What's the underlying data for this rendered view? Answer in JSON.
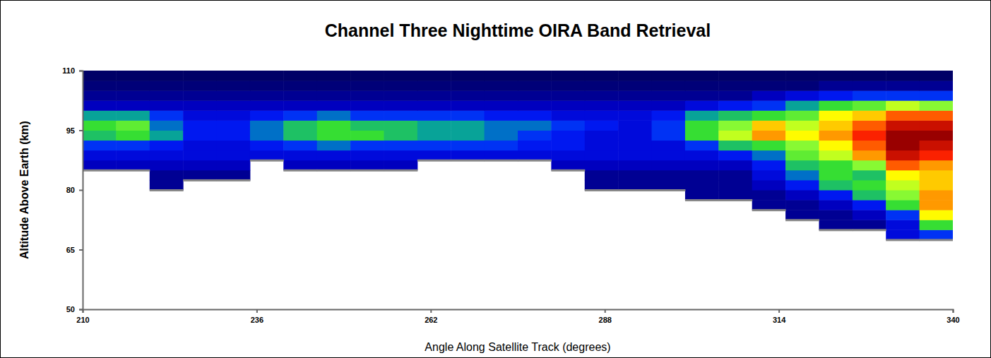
{
  "chart_data": {
    "type": "heatmap",
    "title": "Channel Three Nighttime OIRA Band Retrieval",
    "x_label": "Angle Along Satellite Track (degrees)",
    "y_label": "Altitude Above Earth (km)",
    "xlim": [
      210,
      340
    ],
    "ylim": [
      50,
      110
    ],
    "xticks": [
      210,
      236,
      262,
      288,
      314,
      340
    ],
    "yticks": [
      50,
      65,
      80,
      95,
      110
    ],
    "tick_labels": true,
    "grid": false,
    "x": [
      210,
      215,
      220,
      225,
      230,
      235,
      240,
      245,
      250,
      255,
      260,
      265,
      270,
      275,
      280,
      285,
      290,
      295,
      300,
      305,
      310,
      315,
      320,
      325,
      330,
      335
    ],
    "y": [
      65,
      67.5,
      70,
      72.5,
      75,
      77.5,
      80,
      82.5,
      85,
      87.5,
      90,
      92.5,
      95,
      97.5,
      100,
      102.5,
      105,
      107.5
    ],
    "values": [
      [
        null,
        null,
        null,
        null,
        null,
        null,
        null,
        null,
        null,
        null,
        null,
        null,
        null,
        null,
        null,
        null,
        null,
        null,
        null,
        null,
        null,
        null,
        null,
        null,
        null,
        null
      ],
      [
        null,
        null,
        null,
        null,
        null,
        null,
        null,
        null,
        null,
        null,
        null,
        null,
        null,
        null,
        null,
        null,
        null,
        null,
        null,
        null,
        null,
        null,
        null,
        null,
        2,
        3
      ],
      [
        null,
        null,
        null,
        null,
        null,
        null,
        null,
        null,
        null,
        null,
        null,
        null,
        null,
        null,
        null,
        null,
        null,
        null,
        null,
        null,
        null,
        null,
        1,
        1,
        2,
        5
      ],
      [
        null,
        null,
        null,
        null,
        null,
        null,
        null,
        null,
        null,
        null,
        null,
        null,
        null,
        null,
        null,
        null,
        null,
        null,
        null,
        null,
        null,
        1,
        1,
        1.5,
        3,
        7
      ],
      [
        null,
        null,
        null,
        null,
        null,
        null,
        null,
        null,
        null,
        null,
        null,
        null,
        null,
        null,
        null,
        null,
        null,
        null,
        null,
        null,
        1,
        1,
        1.5,
        2.5,
        5,
        8
      ],
      [
        null,
        null,
        null,
        null,
        null,
        null,
        null,
        null,
        null,
        null,
        null,
        null,
        null,
        null,
        null,
        null,
        null,
        null,
        1,
        1,
        1,
        1.5,
        2.5,
        4.5,
        6,
        8
      ],
      [
        null,
        null,
        1,
        null,
        null,
        null,
        null,
        null,
        null,
        null,
        null,
        null,
        null,
        null,
        null,
        1,
        1,
        1,
        1,
        1,
        1.5,
        2.5,
        4.5,
        5,
        6.5,
        7.5
      ],
      [
        null,
        null,
        1,
        1,
        1,
        null,
        null,
        null,
        null,
        null,
        null,
        null,
        null,
        null,
        null,
        1,
        1,
        1,
        1,
        1,
        2,
        3.5,
        5,
        4.5,
        7,
        7.5
      ],
      [
        1.5,
        1.5,
        1.5,
        1.5,
        1.5,
        null,
        1.5,
        1.5,
        1.5,
        1.5,
        null,
        null,
        null,
        null,
        1.5,
        1.5,
        1.5,
        1.5,
        1.5,
        1.5,
        2.5,
        4.5,
        5,
        6,
        8.5,
        8
      ],
      [
        2,
        2,
        2,
        2,
        2,
        2,
        2,
        2,
        2,
        2,
        2,
        2,
        2,
        2,
        2,
        2,
        2,
        2,
        2,
        2.5,
        3.5,
        5.5,
        6.5,
        8,
        9.5,
        9
      ],
      [
        3,
        3,
        2.5,
        2,
        2,
        2.5,
        3,
        3.5,
        3,
        3,
        3,
        3,
        3,
        2.5,
        2.5,
        2,
        2,
        2,
        3,
        4.5,
        5,
        6,
        7,
        8.5,
        10,
        9.5
      ],
      [
        4.5,
        5,
        4,
        2.5,
        2.5,
        3.5,
        4.5,
        5,
        5,
        4.5,
        4,
        4,
        3.5,
        3,
        2.5,
        2,
        2,
        3,
        5,
        6.5,
        8,
        7,
        8,
        9,
        10,
        10
      ],
      [
        5,
        5.5,
        3.5,
        2.5,
        2.5,
        3.5,
        4.5,
        5,
        4.5,
        4.5,
        4,
        4,
        3.5,
        3.5,
        3,
        2.5,
        2,
        3,
        5,
        6,
        7.5,
        6.5,
        7.5,
        8.5,
        9.5,
        9.5
      ],
      [
        4,
        4,
        3,
        2,
        2,
        2.5,
        3,
        3.5,
        3,
        3,
        3,
        3,
        2.5,
        2.5,
        2,
        2,
        2,
        2.5,
        4,
        4.5,
        5,
        5.5,
        7,
        7.5,
        8.5,
        8.5
      ],
      [
        1.5,
        1.5,
        1.5,
        1.5,
        1.5,
        1.5,
        1.5,
        1.5,
        1.5,
        1.5,
        1.5,
        1.5,
        1.5,
        1.5,
        1.5,
        1.5,
        1.5,
        1.5,
        2,
        2.5,
        3,
        4,
        5,
        5.5,
        6.5,
        6
      ],
      [
        1,
        1,
        1,
        1,
        1,
        1,
        1,
        1,
        1,
        1,
        1,
        1,
        1,
        1,
        1,
        1,
        1,
        1,
        1,
        1,
        1.5,
        2,
        2.5,
        3,
        3,
        3
      ],
      [
        0.7,
        0.7,
        0.7,
        0.7,
        0.7,
        0.7,
        0.7,
        0.7,
        0.7,
        0.7,
        0.7,
        0.7,
        0.7,
        0.7,
        0.7,
        0.7,
        0.7,
        0.7,
        0.7,
        0.7,
        0.7,
        0.7,
        1,
        1,
        1,
        1
      ],
      [
        0.5,
        0.5,
        0.5,
        0.5,
        0.5,
        0.5,
        0.5,
        0.5,
        0.5,
        0.5,
        0.5,
        0.5,
        0.5,
        0.5,
        0.5,
        0.5,
        0.5,
        0.5,
        0.5,
        0.5,
        0.5,
        0.5,
        0.5,
        0.5,
        0.5,
        0.5
      ]
    ]
  }
}
